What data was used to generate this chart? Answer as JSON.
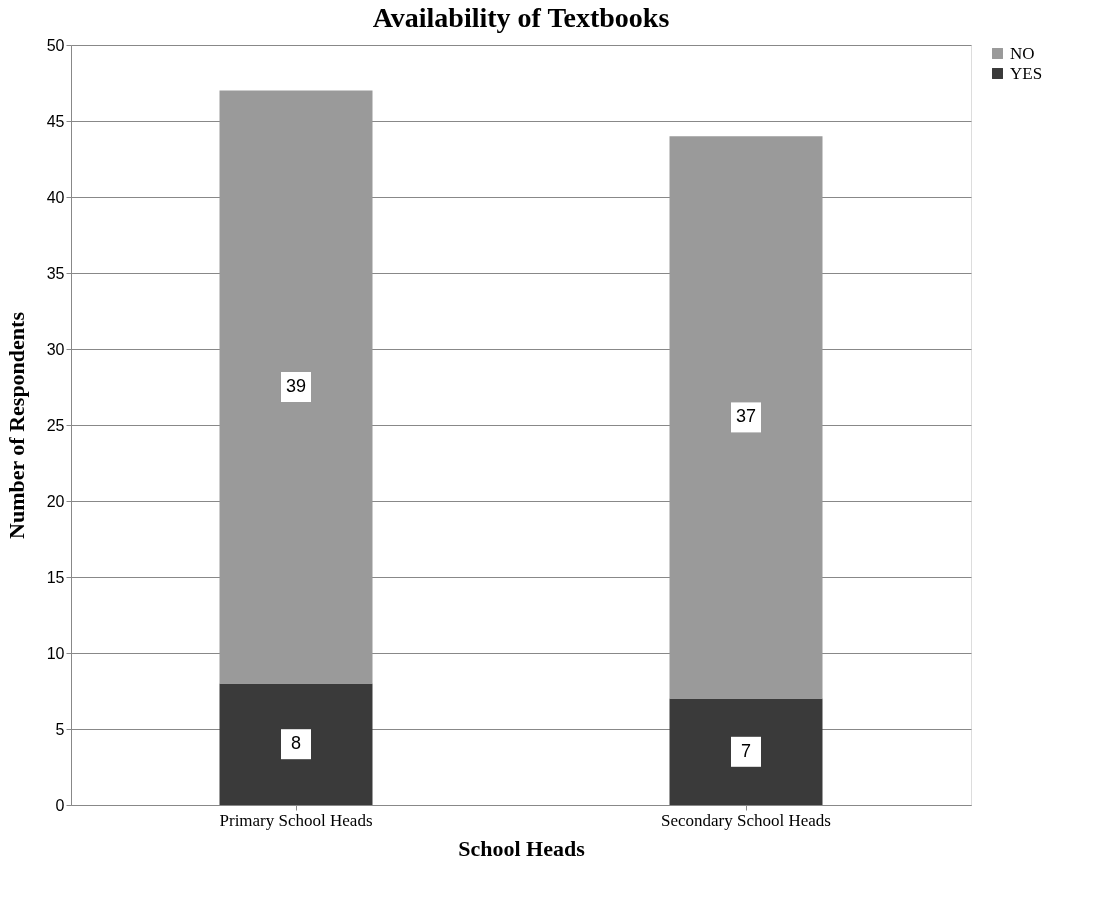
{
  "chart_data": {
    "type": "bar",
    "title": "Availability of Textbooks",
    "xlabel": "School Heads",
    "ylabel": "Number of Respondents",
    "categories": [
      "Primary School Heads",
      "Secondary School Heads"
    ],
    "series": [
      {
        "name": "YES",
        "color": "#3a3a3a",
        "values": [
          8,
          7
        ]
      },
      {
        "name": "NO",
        "color": "#9a9a9a",
        "values": [
          39,
          37
        ]
      }
    ],
    "stacked": true,
    "data_labels": true,
    "ylim": [
      0,
      50
    ],
    "yticks": [
      0,
      5,
      10,
      15,
      20,
      25,
      30,
      35,
      40,
      45,
      50
    ],
    "grid": "y",
    "legend": "right"
  }
}
